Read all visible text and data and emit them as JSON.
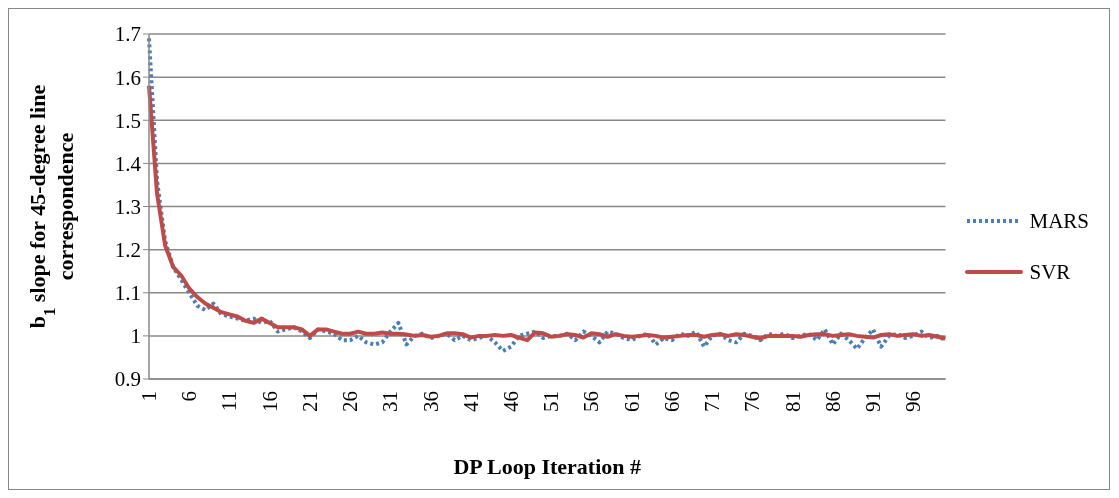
{
  "chart_data": {
    "type": "line",
    "xlabel": "DP Loop Iteration #",
    "ylabel": "b$_{1}$ slope for 45-degree line correspondence",
    "categories": [
      "1",
      null,
      null,
      null,
      null,
      "6",
      null,
      null,
      null,
      null,
      "11",
      null,
      null,
      null,
      null,
      "16",
      null,
      null,
      null,
      null,
      "21",
      null,
      null,
      null,
      null,
      "26",
      null,
      null,
      null,
      null,
      "31",
      null,
      null,
      null,
      null,
      "36",
      null,
      null,
      null,
      null,
      "41",
      null,
      null,
      null,
      null,
      "46",
      null,
      null,
      null,
      null,
      "51",
      null,
      null,
      null,
      null,
      "56",
      null,
      null,
      null,
      null,
      "61",
      null,
      null,
      null,
      null,
      "66",
      null,
      null,
      null,
      null,
      "71",
      null,
      null,
      null,
      null,
      "76",
      null,
      null,
      null,
      null,
      "81",
      null,
      null,
      null,
      null,
      "86",
      null,
      null,
      null,
      null,
      "91",
      null,
      null,
      null,
      null,
      "96",
      null,
      null,
      null,
      null
    ],
    "series": [
      {
        "name": "MARS",
        "color": "#4a7ebb",
        "line_style": "dotted",
        "values": [
          1.69,
          1.36,
          1.22,
          1.16,
          1.13,
          1.1,
          1.07,
          1.06,
          1.075,
          1.05,
          1.045,
          1.04,
          1.035,
          1.04,
          1.03,
          1.035,
          1.01,
          1.015,
          1.02,
          1.01,
          0.995,
          1.015,
          1.01,
          1.005,
          0.99,
          0.99,
          1.0,
          0.985,
          0.98,
          0.985,
          1.01,
          1.03,
          0.98,
          1.0,
          1.005,
          0.995,
          1.0,
          1.005,
          0.99,
          1.0,
          0.99,
          0.995,
          1.0,
          0.985,
          0.965,
          0.975,
          1.0,
          1.005,
          1.01,
          0.995,
          1.0,
          1.0,
          1.005,
          0.99,
          1.01,
          1.0,
          0.985,
          1.01,
          1.005,
          0.995,
          0.99,
          1.0,
          1.005,
          0.98,
          0.995,
          0.99,
          1.005,
          1.0,
          1.01,
          0.975,
          1.0,
          1.005,
          0.99,
          0.985,
          1.005,
          1.0,
          0.99,
          1.005,
          1.0,
          1.005,
          0.995,
          1.0,
          1.005,
          0.99,
          1.015,
          0.98,
          1.005,
          0.99,
          0.97,
          0.995,
          1.015,
          0.975,
          1.0,
          1.005,
          0.995,
          1.0,
          1.01,
          0.995,
          1.0,
          0.99
        ]
      },
      {
        "name": "SVR",
        "color": "#be4b48",
        "line_style": "solid",
        "values": [
          1.58,
          1.33,
          1.21,
          1.16,
          1.14,
          1.11,
          1.09,
          1.075,
          1.065,
          1.055,
          1.05,
          1.045,
          1.035,
          1.03,
          1.04,
          1.03,
          1.02,
          1.02,
          1.02,
          1.015,
          1.0,
          1.015,
          1.015,
          1.01,
          1.005,
          1.005,
          1.01,
          1.005,
          1.005,
          1.008,
          1.005,
          1.005,
          1.003,
          1.0,
          1.002,
          0.998,
          1.0,
          1.006,
          1.006,
          1.004,
          0.996,
          1.0,
          1.0,
          1.002,
          1.0,
          1.002,
          0.996,
          0.99,
          1.008,
          1.006,
          0.998,
          1.0,
          1.004,
          1.002,
          0.996,
          1.006,
          1.004,
          0.998,
          1.004,
          1.0,
          0.998,
          1.0,
          1.002,
          1.0,
          0.996,
          0.998,
          1.0,
          1.002,
          1.002,
          0.998,
          1.002,
          1.004,
          1.0,
          1.004,
          1.002,
          0.998,
          0.994,
          1.0,
          1.0,
          1.0,
          1.0,
          0.998,
          1.002,
          1.004,
          1.004,
          1.0,
          1.002,
          1.004,
          1.0,
          0.998,
          0.996,
          1.002,
          1.004,
          1.0,
          1.002,
          1.004,
          1.0,
          1.002,
          0.998,
          0.994
        ]
      }
    ],
    "ylim": [
      0.9,
      1.7
    ],
    "yticks": [
      0.9,
      1.0,
      1.1,
      1.2,
      1.3,
      1.4,
      1.5,
      1.6,
      1.7
    ],
    "grid": "y",
    "legend": "right",
    "marker": "none"
  }
}
